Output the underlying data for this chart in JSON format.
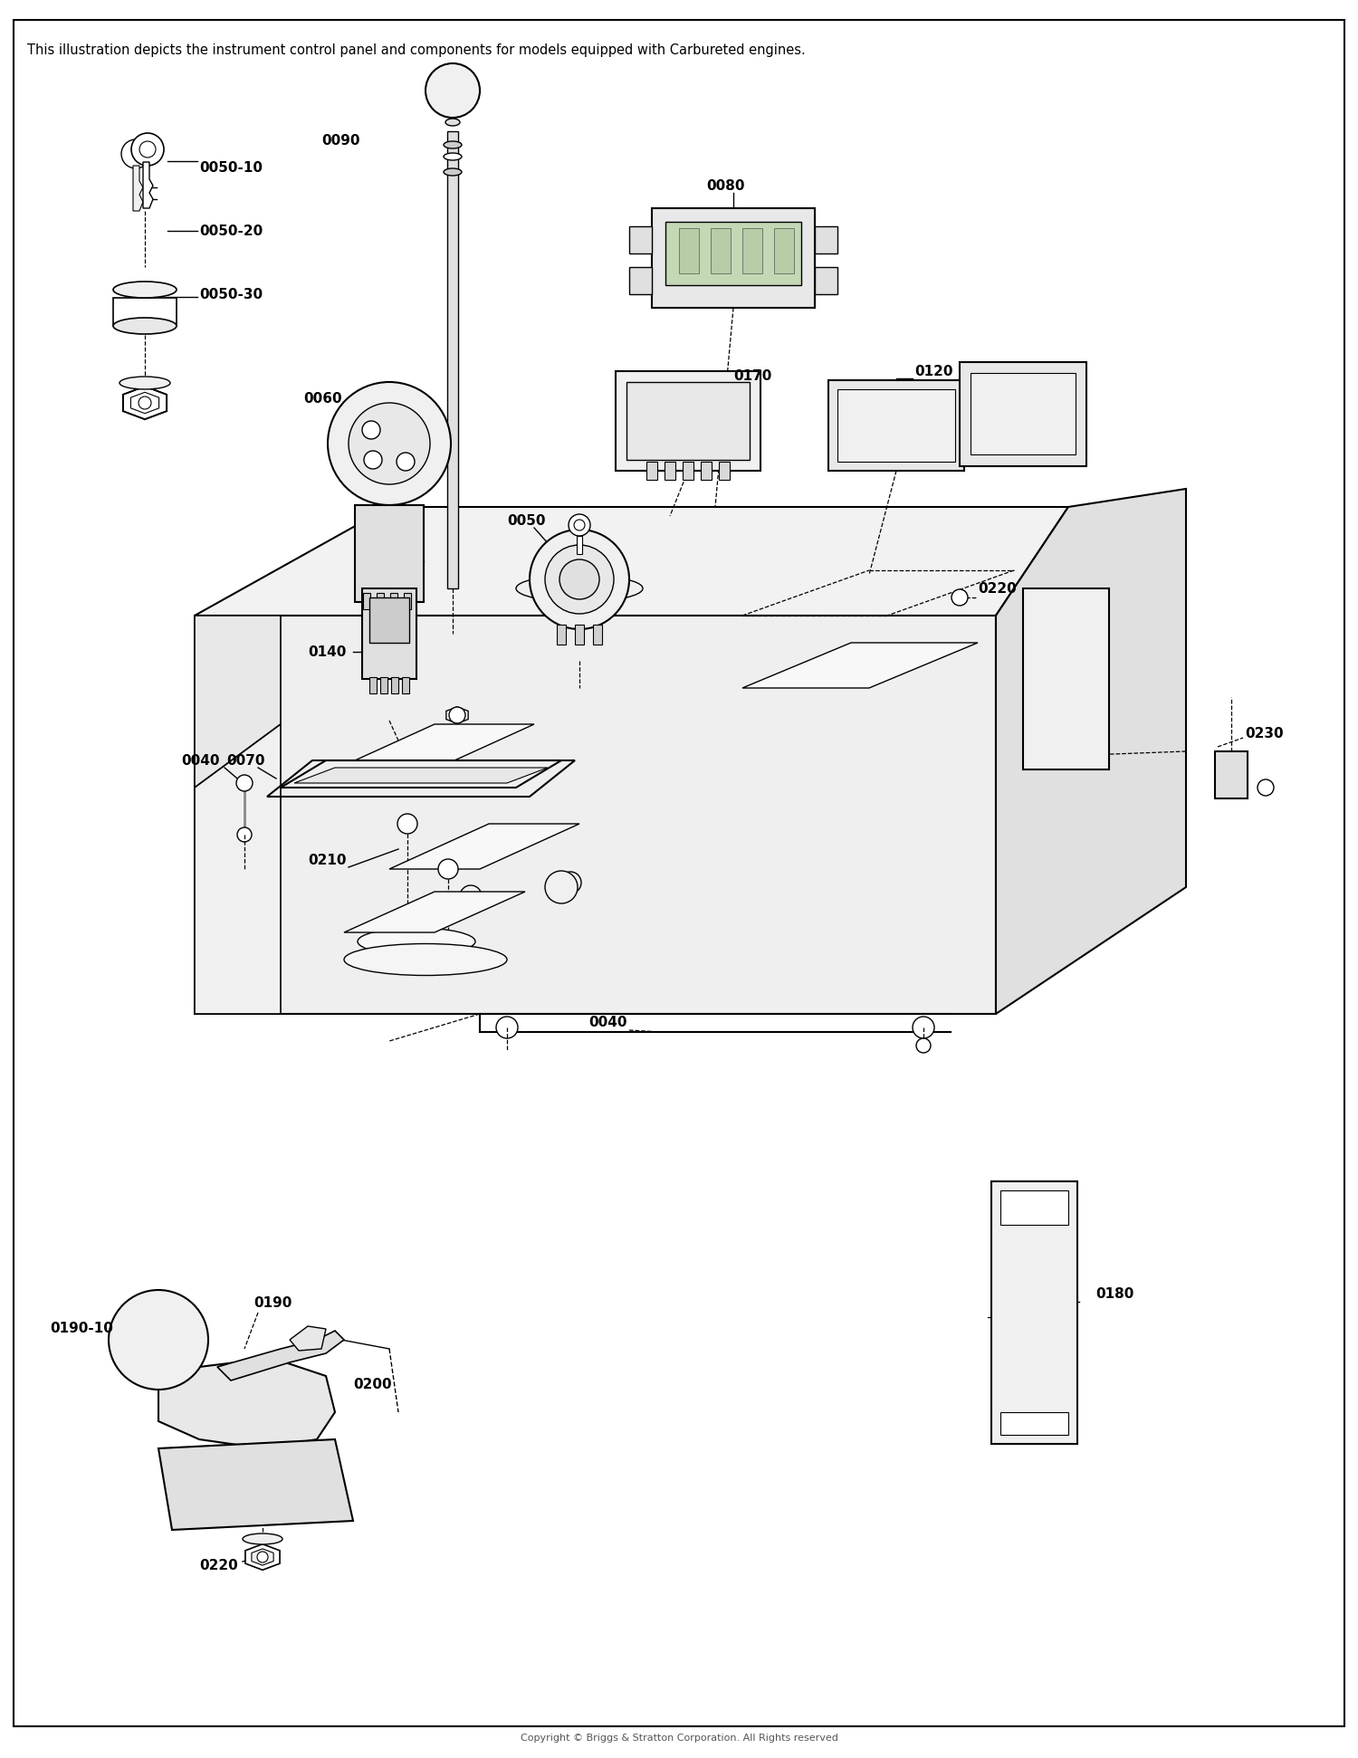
{
  "title_text": "This illustration depicts the instrument control panel and components for models equipped with Carbureted engines.",
  "copyright_text": "Copyright © Briggs & Stratton Corporation. All Rights reserved",
  "background_color": "#ffffff",
  "border_color": "#000000",
  "text_color": "#000000",
  "fig_width": 15.0,
  "fig_height": 19.42,
  "dpi": 100
}
